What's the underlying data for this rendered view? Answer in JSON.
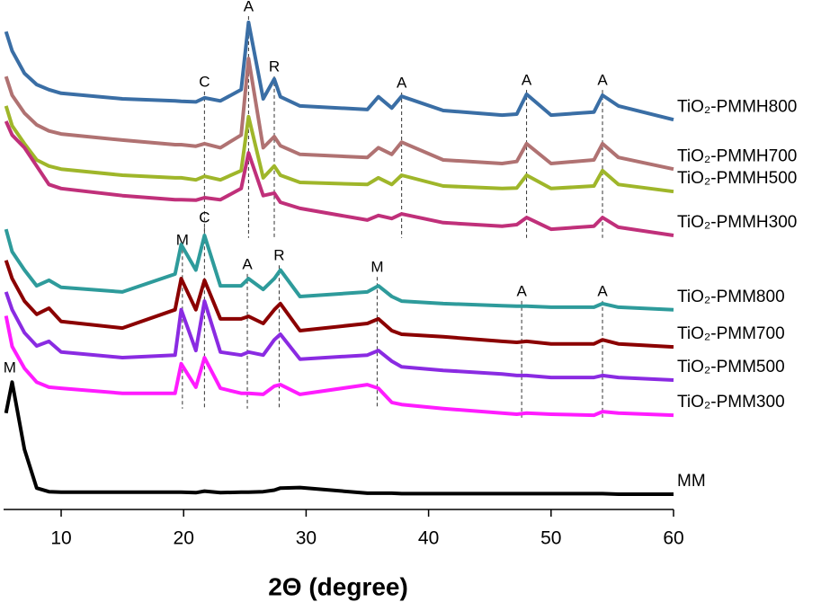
{
  "chart_data": {
    "type": "line",
    "x_label": "2Θ (degree)",
    "xlim": [
      5.3,
      60
    ],
    "ylim": [
      0,
      100
    ],
    "xticks": [
      10,
      20,
      30,
      40,
      50,
      60
    ],
    "x": [
      5.5,
      6,
      7,
      8,
      9,
      10,
      15,
      19.3,
      19.8,
      21,
      21.7,
      23,
      24.7,
      25.3,
      26.5,
      27.4,
      27.9,
      29.5,
      35,
      35.9,
      37,
      37.8,
      41.2,
      46,
      47.2,
      48,
      50,
      53.5,
      54.2,
      55.5,
      60
    ],
    "series": [
      {
        "name": "TiO₂-PMMH800",
        "color": "#3a6ea5",
        "values": [
          93.8,
          90,
          85.6,
          83.4,
          82.4,
          81.7,
          80.6,
          80.2,
          80.1,
          80,
          80.8,
          80.2,
          82.4,
          95.6,
          80.6,
          84.5,
          81,
          79.2,
          78.5,
          81,
          78.8,
          81.1,
          78.3,
          77.4,
          77.6,
          81.5,
          77.4,
          78,
          81.3,
          79.2,
          76.5
        ]
      },
      {
        "name": "TiO₂-PMMH700",
        "color": "#b07272",
        "values": [
          85,
          81.3,
          77.8,
          75.5,
          74.3,
          73.7,
          72.5,
          71.6,
          71.6,
          71.3,
          71.8,
          71,
          73.5,
          88.5,
          71,
          73.2,
          71.4,
          69.7,
          69.1,
          71,
          69.7,
          72.1,
          68.6,
          67.9,
          68.3,
          71.8,
          67.9,
          68.6,
          71.8,
          69.1,
          66.8
        ]
      },
      {
        "name": "TiO₂-PMMH500",
        "color": "#9fb62a",
        "values": [
          79.2,
          75.3,
          71.8,
          68.6,
          67.4,
          66.8,
          65.6,
          65.1,
          65.1,
          64.7,
          65.4,
          64.7,
          66.5,
          77.1,
          65.1,
          67.4,
          65.6,
          64.2,
          63.8,
          65.1,
          63.8,
          65.6,
          63.5,
          63,
          63.1,
          65.6,
          63,
          63.5,
          66.5,
          63.8,
          62.4
        ]
      },
      {
        "name": "TiO₂-PMMH300",
        "color": "#c0307a",
        "values": [
          76.2,
          73.5,
          71,
          67.4,
          63.8,
          63,
          61.6,
          60.8,
          60.8,
          60.7,
          61.2,
          60.8,
          63,
          70,
          61.6,
          62.1,
          60.3,
          59.1,
          56.8,
          57.7,
          57.1,
          58,
          56.3,
          55.6,
          55.9,
          57.3,
          55,
          55.6,
          57.3,
          55.4,
          53.8
        ]
      },
      {
        "name": "TiO₂-PMM800",
        "color": "#2e9b9b",
        "values": [
          55,
          50.6,
          47,
          43.9,
          45,
          43.6,
          42.7,
          46.2,
          52,
          47,
          53.8,
          43.9,
          43.9,
          45.3,
          43.2,
          45.3,
          47,
          41.8,
          42.7,
          43.9,
          41.8,
          40.9,
          40.4,
          40,
          39.9,
          39.9,
          39.7,
          39.7,
          40.4,
          39.7,
          39.2
        ]
      },
      {
        "name": "TiO₂-PMM700",
        "color": "#8b0000",
        "values": [
          48.9,
          45.3,
          40.9,
          38.3,
          39.5,
          36.9,
          35.6,
          39.2,
          45.3,
          39.2,
          45,
          37.4,
          37.4,
          37.9,
          36.5,
          39.2,
          40.4,
          35.1,
          36.5,
          37.4,
          35.1,
          34.4,
          33.9,
          33,
          32.8,
          33,
          32.5,
          32.5,
          33.3,
          32.5,
          31.9
        ]
      },
      {
        "name": "TiO₂-PMM500",
        "color": "#8a2be2",
        "values": [
          42.7,
          39.2,
          34.7,
          32.1,
          33,
          30.9,
          29.8,
          30.3,
          39.2,
          31.2,
          40.9,
          30.9,
          30.3,
          30.9,
          30.3,
          33.3,
          34.4,
          29.5,
          30.3,
          31.2,
          29.1,
          28,
          27.3,
          26.6,
          26.3,
          26.3,
          25.9,
          25.9,
          26.3,
          25.9,
          25.4
        ]
      },
      {
        "name": "TiO₂-PMM300",
        "color": "#ff1cff",
        "values": [
          38,
          32,
          27.7,
          25,
          24,
          23.8,
          22.8,
          22.8,
          28.6,
          24,
          29.8,
          23.8,
          22.8,
          22.8,
          22.6,
          24.2,
          24.5,
          22.6,
          24.5,
          23.8,
          21,
          20.6,
          19.8,
          18.9,
          18.7,
          18.9,
          18.7,
          18.5,
          19.2,
          18.9,
          18.5
        ]
      },
      {
        "name": "MM",
        "color": "#000000",
        "values": [
          18.9,
          25,
          11.8,
          4.2,
          3.5,
          3.4,
          3.4,
          3.4,
          3.4,
          3.3,
          3.6,
          3.3,
          3.4,
          3.4,
          3.5,
          3.8,
          4.2,
          4.3,
          3.2,
          3.2,
          3.2,
          3.1,
          3.1,
          3.1,
          3.1,
          3.1,
          3.1,
          3.1,
          3.1,
          3,
          3
        ]
      }
    ],
    "annotations": [
      {
        "text": "C",
        "x": 21.7,
        "y": 83.8,
        "y_end": 53.3
      },
      {
        "text": "A",
        "x": 25.3,
        "y": 98.6,
        "y_end": 53.3
      },
      {
        "text": "R",
        "x": 27.4,
        "y": 86.8,
        "y_end": 53.3
      },
      {
        "text": "A",
        "x": 37.8,
        "y": 83.6,
        "y_end": 53.3
      },
      {
        "text": "A",
        "x": 48,
        "y": 84.1,
        "y_end": 53.3
      },
      {
        "text": "A",
        "x": 54.2,
        "y": 84.1,
        "y_end": 53.3
      },
      {
        "text": "M",
        "x": 19.9,
        "y": 52.7,
        "y_end": 19.8
      },
      {
        "text": "C",
        "x": 21.7,
        "y": 57.1,
        "y_end": 19.8
      },
      {
        "text": "A",
        "x": 25.2,
        "y": 48,
        "y_end": 19.8
      },
      {
        "text": "R",
        "x": 27.8,
        "y": 49.7,
        "y_end": 19.8
      },
      {
        "text": "M",
        "x": 35.8,
        "y": 47.4,
        "y_end": 19.8
      },
      {
        "text": "A",
        "x": 47.6,
        "y": 42.7,
        "y_end": 18
      },
      {
        "text": "A",
        "x": 54.2,
        "y": 42.7,
        "y_end": 18
      },
      {
        "text": "M",
        "x": 5.8,
        "y": 27.7
      }
    ]
  }
}
